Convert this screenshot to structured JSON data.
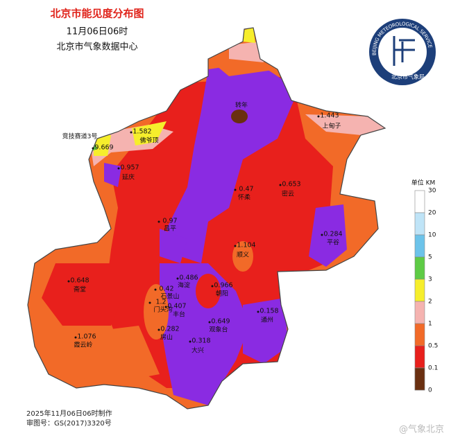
{
  "header": {
    "title": "北京市能见度分布图",
    "time": "11月06日06时",
    "source": "北京市气象数据中心"
  },
  "logo": {
    "ring_text": "BEIJING METEOROLOGICAL SERVICE",
    "name": "北京市气象局"
  },
  "legend": {
    "title": "单位 KM",
    "levels": [
      30,
      20,
      10,
      5,
      3,
      2,
      1,
      0.5,
      0.1,
      0
    ],
    "colors": [
      "#ffffff",
      "#bfe4f7",
      "#6cc3ea",
      "#5ecb45",
      "#f6ee2c",
      "#f5b3b0",
      "#f26a28",
      "#e8201c",
      "#8a2be2",
      "#6a2f10"
    ]
  },
  "stations": [
    {
      "name": "竞技赛道3号",
      "value": 9.669
    },
    {
      "name": "佛爷顶",
      "value": 1.582
    },
    {
      "name": "延庆",
      "value": 0.957
    },
    {
      "name": "转年"
    },
    {
      "name": "上甸子",
      "value": 1.443
    },
    {
      "name": "怀柔",
      "value": 0.47
    },
    {
      "name": "密云",
      "value": 0.653
    },
    {
      "name": "昌平",
      "value": 0.97
    },
    {
      "name": "平谷",
      "value": 0.284
    },
    {
      "name": "顺义",
      "value": 1.104
    },
    {
      "name": "海淀",
      "value": 0.486
    },
    {
      "name": "朝阳",
      "value": 0.966
    },
    {
      "name": "石景山",
      "value": 0.42
    },
    {
      "name": "门头沟",
      "value": 1.2
    },
    {
      "name": "丰台",
      "value": 0.407
    },
    {
      "name": "斋堂",
      "value": 0.648
    },
    {
      "name": "观象台",
      "value": 0.649
    },
    {
      "name": "通州",
      "value": 0.158
    },
    {
      "name": "房山",
      "value": 0.282
    },
    {
      "name": "大兴",
      "value": 0.318
    },
    {
      "name": "霞云岭",
      "value": 1.076
    }
  ],
  "footer": {
    "made": "2025年11月06日06时制作",
    "approval": "审图号：GS(2017)3320号",
    "watermark": "@气象北京"
  }
}
